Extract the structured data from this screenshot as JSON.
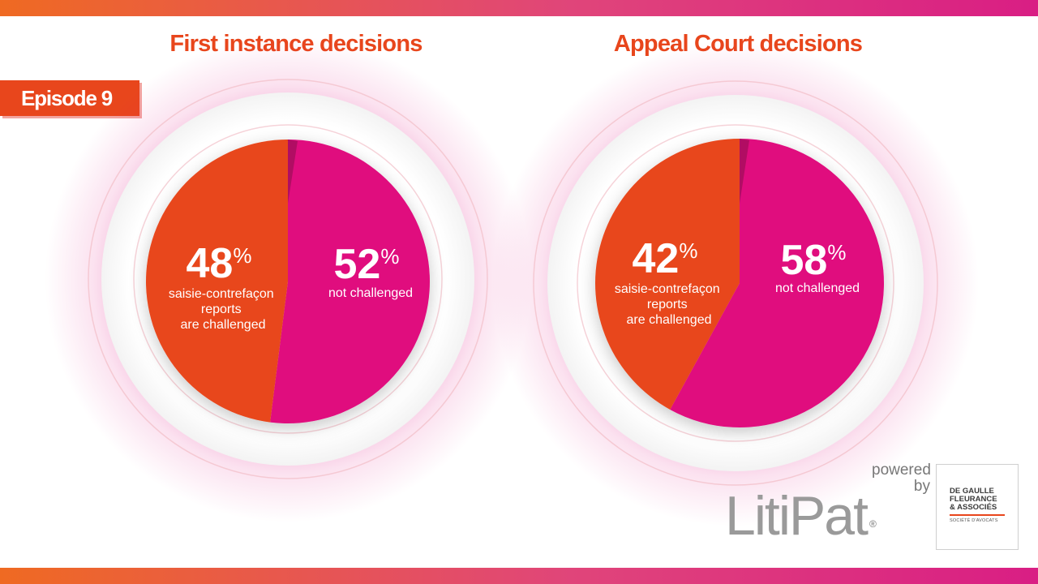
{
  "badge": {
    "label": "Episode 9"
  },
  "chart_data": [
    {
      "type": "pie",
      "title": "First instance decisions",
      "slices": [
        {
          "percent": 52,
          "value_label": "52",
          "unit": "%",
          "caption_lines": [
            "not challenged"
          ],
          "color": "#e0097e"
        },
        {
          "percent": 48,
          "value_label": "48",
          "unit": "%",
          "caption_lines": [
            "saisie-contrefaçon",
            "reports",
            "are challenged"
          ],
          "color": "#e8461c"
        }
      ]
    },
    {
      "type": "pie",
      "title": "Appeal Court decisions",
      "slices": [
        {
          "percent": 58,
          "value_label": "58",
          "unit": "%",
          "caption_lines": [
            "not challenged"
          ],
          "color": "#e0097e"
        },
        {
          "percent": 42,
          "value_label": "42",
          "unit": "%",
          "caption_lines": [
            "saisie-contrefaçon",
            "reports",
            "are challenged"
          ],
          "color": "#e8461c"
        }
      ]
    }
  ],
  "branding": {
    "powered_by": [
      "powered",
      "by"
    ],
    "litipat": "LitiPat",
    "registered": "®",
    "firm_name": [
      "DE GAULLE",
      "FLEURANCE",
      "& ASSOCIÉS"
    ],
    "firm_sub": "SOCIÉTÉ D'AVOCATS"
  }
}
